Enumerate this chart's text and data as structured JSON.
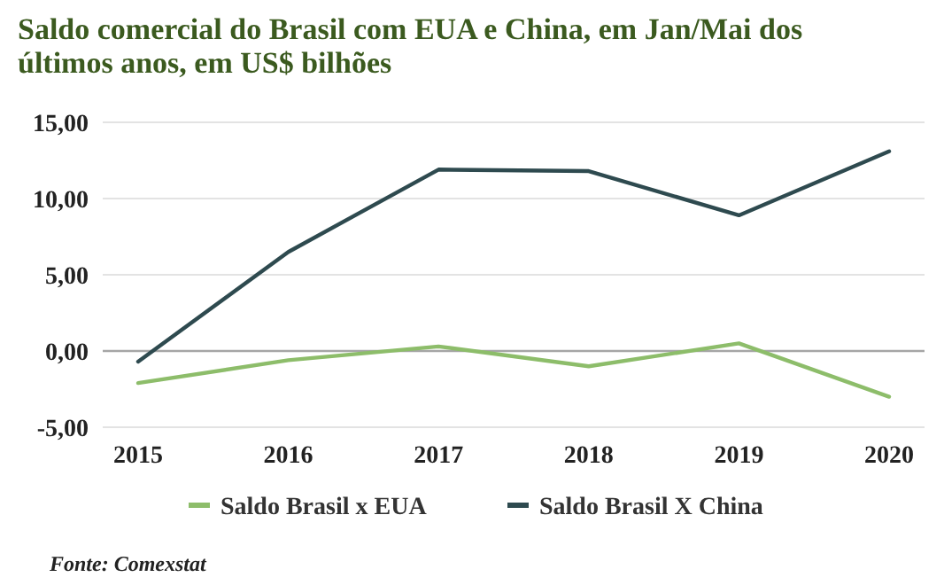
{
  "chart_data": {
    "type": "line",
    "title": "Saldo comercial do Brasil com EUA e China, em Jan/Mai dos últimos anos, em US$ bilhões",
    "categories": [
      "2015",
      "2016",
      "2017",
      "2018",
      "2019",
      "2020"
    ],
    "series": [
      {
        "name": "Saldo Brasil x EUA",
        "color": "#8dbd6a",
        "values": [
          -2.1,
          -0.6,
          0.3,
          -1.0,
          0.5,
          -3.0
        ]
      },
      {
        "name": "Saldo Brasil X China",
        "color": "#2e4a4f",
        "values": [
          -0.7,
          6.5,
          11.9,
          11.8,
          8.9,
          13.1
        ]
      }
    ],
    "ylim": [
      -5,
      15
    ],
    "yticks": [
      {
        "value": -5,
        "label": "-5,00"
      },
      {
        "value": 0,
        "label": "0,00"
      },
      {
        "value": 5,
        "label": "5,00"
      },
      {
        "value": 10,
        "label": "10,00"
      },
      {
        "value": 15,
        "label": "15,00"
      }
    ],
    "ref_lines": [
      {
        "axis": "y",
        "value": 0,
        "color": "#a6a6a6"
      }
    ],
    "grid": "y",
    "legend": "bottom",
    "line_style": "solid",
    "annotations": [
      "Fonte: Comexstat"
    ]
  }
}
